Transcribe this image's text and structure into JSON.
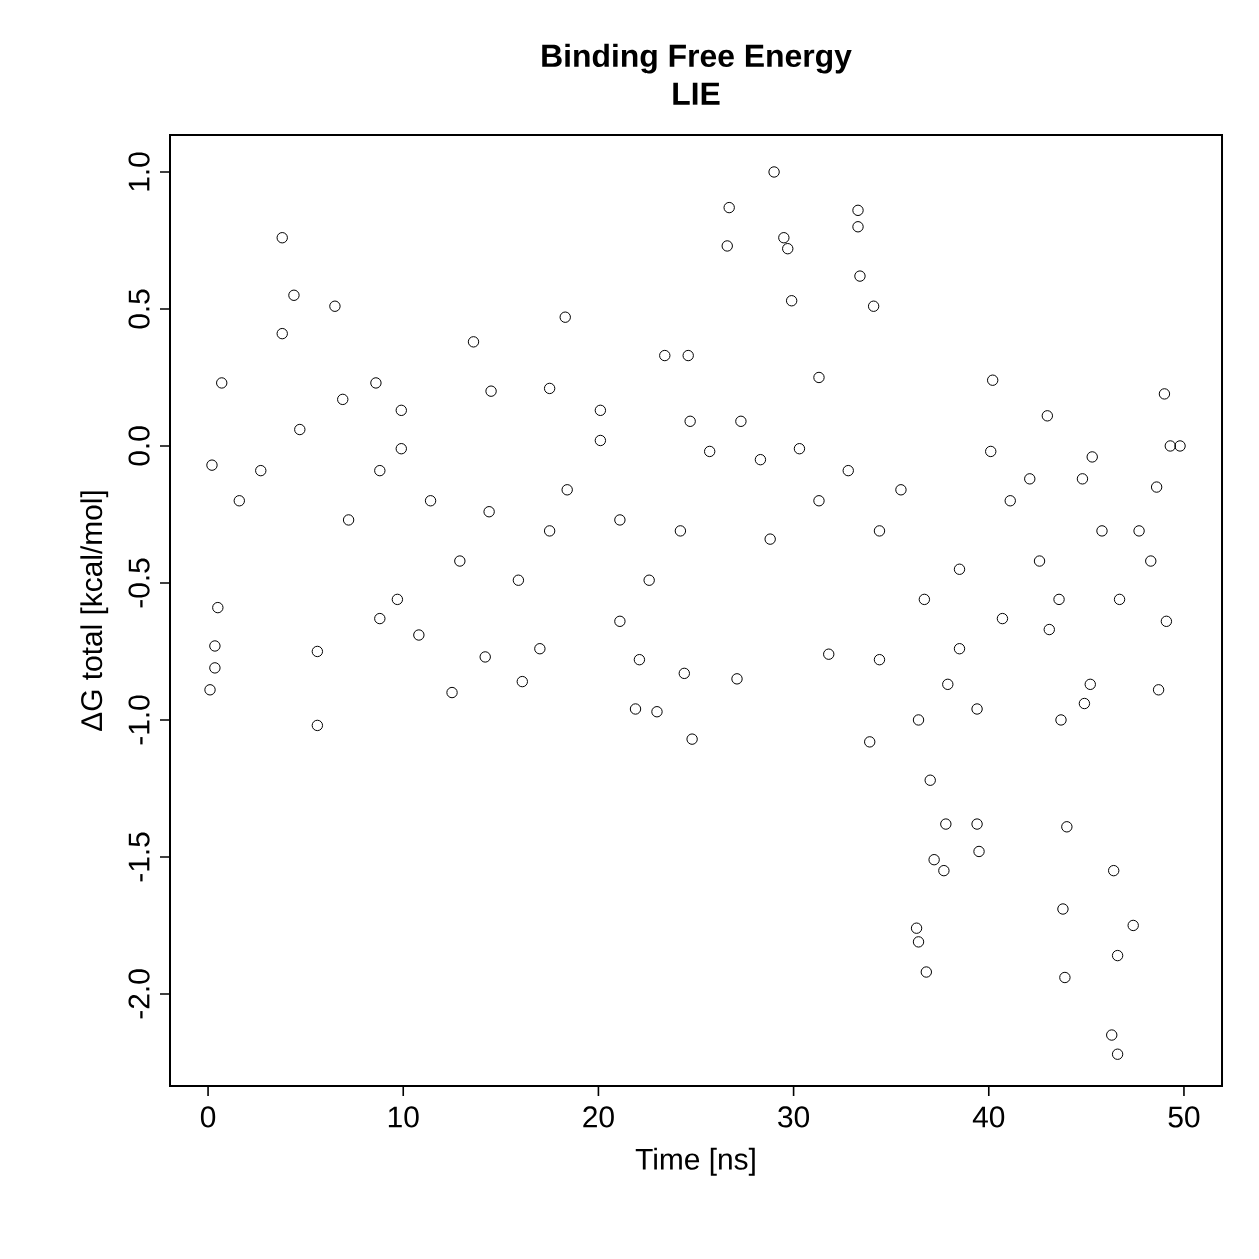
{
  "chart_data": {
    "type": "scatter",
    "title": "Binding Free Energy",
    "subtitle": "LIE",
    "xlabel": "Time [ns]",
    "ylabel": "ΔG total [kcal/mol]",
    "marker": "circle",
    "color": "#000000",
    "xlim": [
      -1.95,
      51.95
    ],
    "ylim": [
      -2.336,
      1.135
    ],
    "xticks": [
      0,
      10,
      20,
      30,
      40,
      50
    ],
    "yticks": [
      {
        "value": -2,
        "label": "-2.0"
      },
      {
        "value": -1.5,
        "label": "-1.5"
      },
      {
        "value": -1,
        "label": "-1.0"
      },
      {
        "value": -0.5,
        "label": "-0.5"
      },
      {
        "value": 0,
        "label": "0.0"
      },
      {
        "value": 0.5,
        "label": "0.5"
      },
      {
        "value": 1,
        "label": "1.0"
      }
    ],
    "x": [
      0.1,
      0.2,
      0.35,
      0.35,
      0.5,
      0.7,
      3.8,
      4.4,
      3.8,
      5.6,
      5.6,
      6.5,
      6.9,
      8.6,
      8.8,
      9.9,
      9.7,
      10.8,
      13.6,
      12.5,
      14.5,
      14.2,
      16.1,
      17.5,
      17.0,
      18.3,
      20.1,
      21.1,
      21.9,
      23.0,
      23.4,
      24.6,
      24.4,
      24.8,
      26.6,
      26.7,
      27.1,
      29.0,
      29.5,
      29.7,
      29.9,
      31.3,
      31.8,
      33.3,
      33.3,
      33.4,
      33.9,
      34.1,
      34.4,
      36.3,
      36.4,
      36.8,
      36.4,
      37.2,
      37.7,
      37.0,
      37.8,
      38.5,
      37.9,
      39.4,
      39.5,
      39.4,
      40.2,
      40.7,
      42.6,
      43.0,
      43.1,
      43.8,
      43.9,
      43.7,
      44.0,
      44.8,
      44.9,
      45.3,
      45.8,
      46.3,
      46.6,
      46.4,
      46.6,
      47.4,
      47.7,
      49.0,
      49.3,
      49.8,
      49.1,
      48.7,
      48.6,
      1.6,
      2.7,
      4.7,
      7.2,
      8.8,
      9.9,
      11.4,
      12.9,
      14.4,
      15.9,
      17.5,
      18.4,
      20.1,
      21.1,
      22.6,
      24.2,
      25.7,
      27.3,
      28.3,
      30.3,
      31.3,
      32.8,
      34.4,
      35.5,
      36.7,
      38.5,
      40.1,
      41.1,
      42.1,
      43.6,
      45.2,
      46.7,
      48.3,
      28.8,
      24.7,
      22.1
    ],
    "values": [
      -0.89,
      -0.07,
      -0.73,
      -0.81,
      -0.59,
      0.23,
      0.76,
      0.55,
      0.41,
      -1.02,
      -0.75,
      0.51,
      0.17,
      0.23,
      -0.63,
      0.13,
      -0.56,
      -0.69,
      0.38,
      -0.9,
      0.2,
      -0.77,
      -0.86,
      0.21,
      -0.74,
      0.47,
      0.13,
      -0.64,
      -0.96,
      -0.97,
      0.33,
      0.33,
      -0.83,
      -1.07,
      0.73,
      0.87,
      -0.85,
      1.0,
      0.76,
      0.72,
      0.53,
      0.25,
      -0.76,
      0.86,
      0.8,
      0.62,
      -1.08,
      0.51,
      -0.78,
      -1.76,
      -1.81,
      -1.92,
      -1.0,
      -1.51,
      -1.55,
      -1.22,
      -1.38,
      -0.45,
      -0.87,
      -0.96,
      -1.48,
      -1.38,
      0.24,
      -0.63,
      -0.42,
      0.11,
      -0.67,
      -1.69,
      -1.94,
      -1.0,
      -1.39,
      -0.12,
      -0.94,
      -0.04,
      -0.31,
      -2.15,
      -2.22,
      -1.55,
      -1.86,
      -1.75,
      -0.31,
      0.19,
      0.0,
      0.0,
      -0.64,
      -0.89,
      -0.15,
      -0.2,
      -0.09,
      0.06,
      -0.27,
      -0.09,
      -0.01,
      -0.2,
      -0.42,
      -0.24,
      -0.49,
      -0.31,
      -0.16,
      0.02,
      -0.27,
      -0.49,
      -0.31,
      -0.02,
      0.09,
      -0.05,
      -0.01,
      -0.2,
      -0.09,
      -0.31,
      -0.16,
      -0.56,
      -0.74,
      -0.02,
      -0.2,
      -0.12,
      -0.56,
      -0.87,
      -0.56,
      -0.42,
      -0.34,
      0.09,
      -0.78
    ]
  }
}
